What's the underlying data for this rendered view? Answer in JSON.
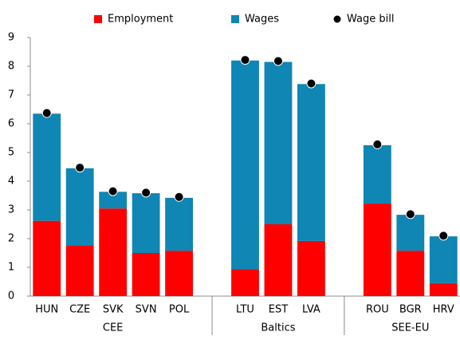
{
  "chart_data": {
    "type": "bar",
    "stacked": true,
    "categories": [
      "HUN",
      "CZE",
      "SVK",
      "SVN",
      "POL",
      null,
      "LTU",
      "EST",
      "LVA",
      null,
      "ROU",
      "BGR",
      "HRV"
    ],
    "groups": [
      {
        "name": "CEE",
        "first": 0,
        "last": 4
      },
      {
        "name": "Baltics",
        "first": 6,
        "last": 8
      },
      {
        "name": "SEE-EU",
        "first": 10,
        "last": 12
      }
    ],
    "series": [
      {
        "name": "Employment",
        "type": "bar",
        "color": "#ff0000",
        "values": [
          2.62,
          1.75,
          3.05,
          1.5,
          1.58,
          null,
          0.93,
          2.5,
          1.92,
          null,
          3.22,
          1.58,
          0.45
        ]
      },
      {
        "name": "Wages",
        "type": "bar",
        "color": "#0f86b4",
        "values": [
          3.73,
          2.7,
          0.58,
          2.08,
          1.84,
          null,
          7.27,
          5.65,
          5.46,
          null,
          2.03,
          1.25,
          1.63
        ]
      },
      {
        "name": "Wage bill",
        "type": "scatter",
        "color": "#000000",
        "values": [
          6.37,
          4.47,
          3.65,
          3.6,
          3.45,
          null,
          8.22,
          8.18,
          7.4,
          null,
          5.28,
          2.85,
          2.1
        ]
      }
    ],
    "ylim": [
      0,
      9
    ],
    "yticks": [
      0,
      1,
      2,
      3,
      4,
      5,
      6,
      7,
      8,
      9
    ],
    "grid": false,
    "legend": "top"
  }
}
